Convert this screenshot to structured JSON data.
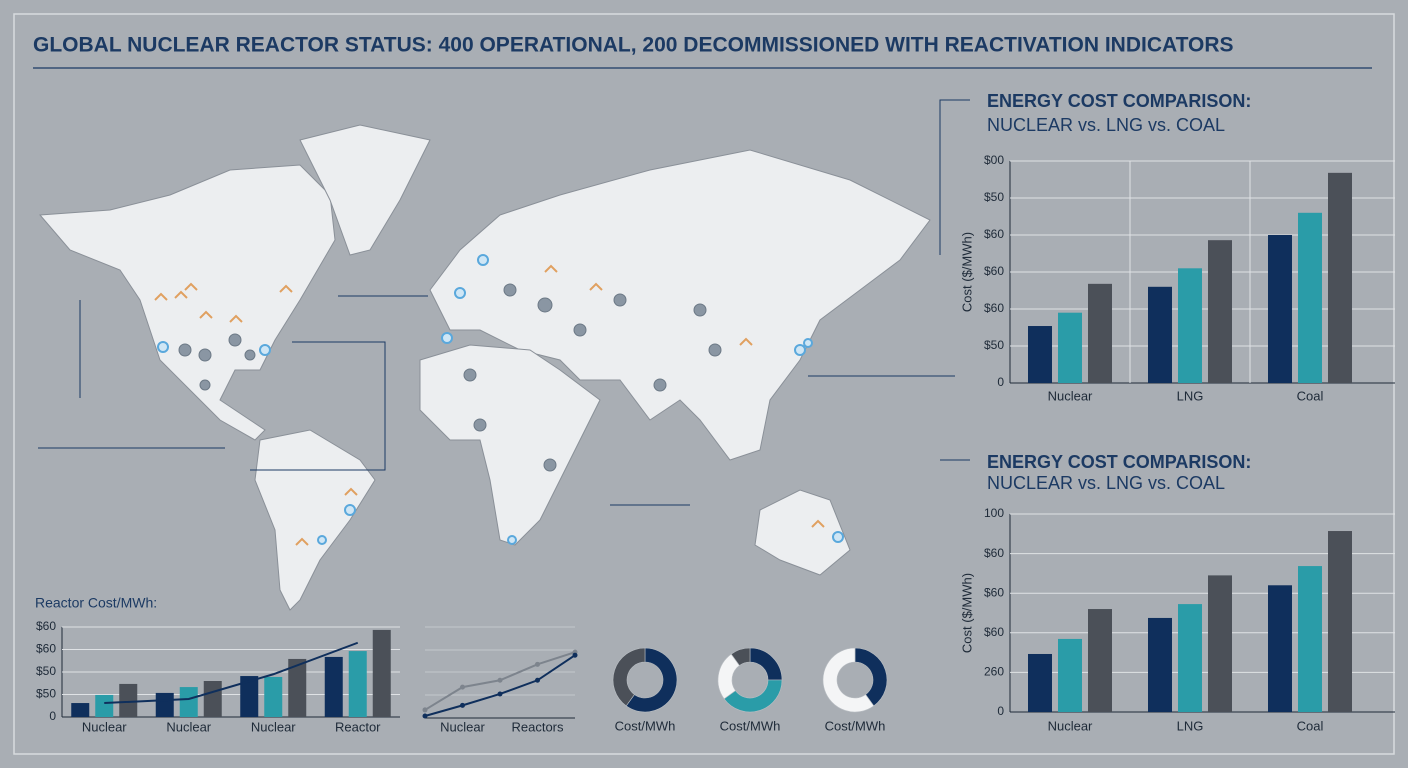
{
  "title": "GLOBAL NUCLEAR REACTOR STATUS: 400 OPERATIONAL, 200 DECOMMISSIONED WITH REACTIVATION INDICATORS",
  "chart_data": [
    {
      "type": "bar",
      "title": "ENERGY COST COMPARISON:",
      "subtitle": "NUCLEAR vs. LNG vs. COAL",
      "y_label": "Cost ($/MWh)",
      "categories": [
        "Nuclear",
        "LNG",
        "Coal"
      ],
      "series": [
        {
          "color": "#0f2f5c",
          "values": [
            15.4,
            26,
            40
          ]
        },
        {
          "color": "#2a9ca8",
          "values": [
            19,
            31,
            46
          ]
        },
        {
          "color": "#4b5058",
          "values": [
            26.8,
            38.6,
            56.8
          ]
        }
      ],
      "ylim": [
        0,
        60
      ],
      "yticks": [
        0,
        {
          "value": 10,
          "label": "$50"
        },
        {
          "value": 20,
          "label": "$60"
        },
        {
          "value": 30,
          "label": "$60"
        },
        {
          "value": 40,
          "label": "$60"
        },
        {
          "value": 50,
          "label": "$50"
        },
        {
          "value": 60,
          "label": "$00"
        }
      ],
      "grid": true
    },
    {
      "type": "bar",
      "title": "ENERGY COST COMPARISON:",
      "subtitle": "NUCLEAR vs. LNG vs. COAL",
      "y_label": "Cost ($/MWh)",
      "categories": [
        "Nuclear",
        "LNG",
        "Coal"
      ],
      "series": [
        {
          "color": "#0f2f5c",
          "values": [
            29.3,
            47.5,
            64
          ]
        },
        {
          "color": "#2a9ca8",
          "values": [
            36.9,
            54.5,
            73.7
          ]
        },
        {
          "color": "#4b5058",
          "values": [
            52,
            69,
            91.4
          ]
        }
      ],
      "ylim": [
        0,
        100
      ],
      "yticks": [
        0,
        {
          "value": 20,
          "label": "260"
        },
        {
          "value": 40,
          "label": "$60"
        },
        {
          "value": 60,
          "label": "$60"
        },
        {
          "value": 80,
          "label": "$60"
        },
        100
      ],
      "grid": true
    },
    {
      "type": "bar",
      "title": "Reactor Cost/MWh:",
      "categories": [
        "Nuclear",
        "Nuclear",
        "Nuclear",
        "Reactor"
      ],
      "series": [
        {
          "color": "#0f2f5c",
          "values": [
            6.2,
            10.7,
            18.2,
            26.7
          ]
        },
        {
          "color": "#2a9ca8",
          "values": [
            9.8,
            13.3,
            17.8,
            29.3
          ]
        },
        {
          "color": "#4b5058",
          "values": [
            14.7,
            16,
            25.8,
            38.7
          ]
        },
        {
          "type": "line",
          "color": "#0f2f5c",
          "values": [
            6.2,
            8,
            19,
            33
          ]
        }
      ],
      "ylim": [
        0,
        40
      ],
      "yticks": [
        0,
        {
          "value": 10,
          "label": "$50"
        },
        {
          "value": 20,
          "label": "$50"
        },
        {
          "value": 30,
          "label": "$60"
        },
        {
          "value": 40,
          "label": "$60"
        }
      ],
      "grid": true
    },
    {
      "type": "line",
      "categories": [
        null,
        "Nuclear",
        null,
        "Reactors",
        null
      ],
      "series": [
        {
          "color": "#7d848d",
          "values": [
            8,
            38,
            47,
            68,
            84
          ]
        },
        {
          "color": "#0f2f5c",
          "values": [
            0,
            14,
            29,
            47,
            80
          ]
        }
      ],
      "ylim": [
        0,
        100
      ]
    },
    {
      "type": "pie",
      "label": "Cost/MWh",
      "values": [
        60,
        40
      ],
      "colors": [
        "#0f2f5c",
        "#4b5058"
      ]
    },
    {
      "type": "pie",
      "label": "Cost/MWh",
      "values": [
        25,
        40,
        25,
        10
      ],
      "colors": [
        "#0f2f5c",
        "#2a9ca8",
        "#f4f5f6",
        "#4b5058"
      ]
    },
    {
      "type": "pie",
      "label": "Cost/MWh",
      "values": [
        40,
        60
      ],
      "colors": [
        "#0f2f5c",
        "#f4f5f6"
      ]
    }
  ]
}
